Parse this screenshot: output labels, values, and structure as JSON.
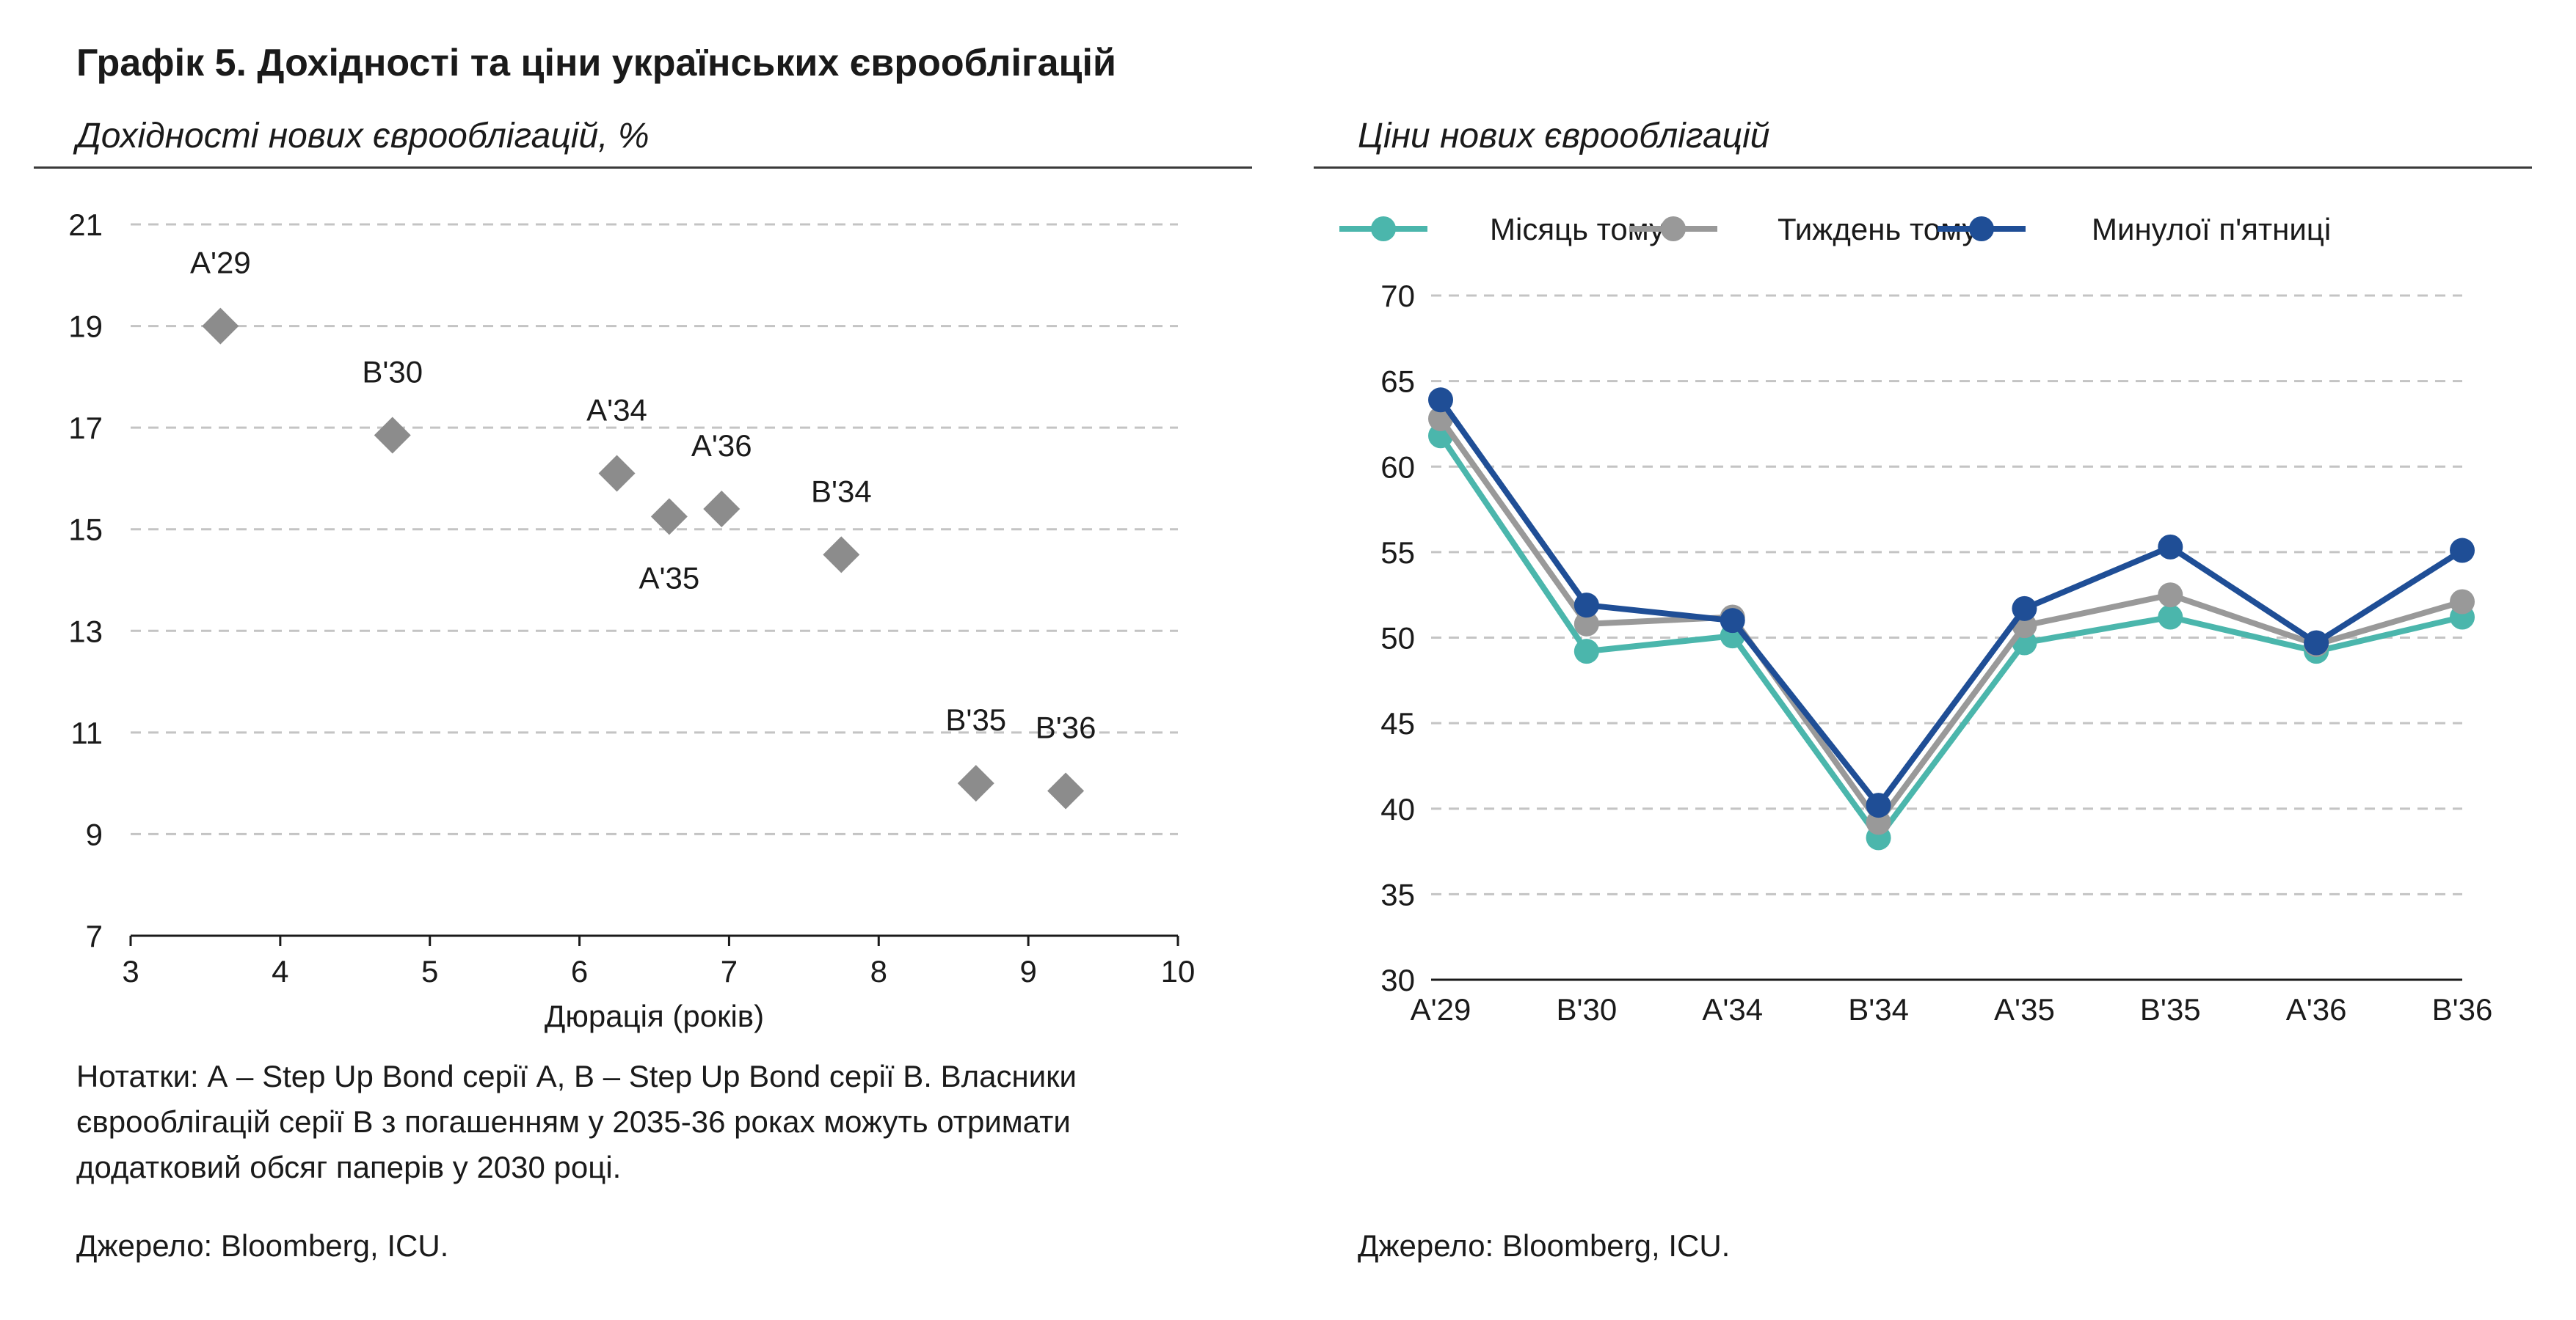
{
  "title": "Графік 5. Дохідності та ціни українських єврооблігацій",
  "left_panel": {
    "subtitle": "Дохідності нових єврооблігацій, %",
    "notes": [
      "Нотатки: А – Step Up Bond серії А, В – Step Up Bond серії В. Власники",
      "єврооблігацій серії В з погашенням у 2035-36 роках можуть отримати",
      "додатковий обсяг паперів у 2030 році."
    ],
    "source": "Джерело: Bloomberg, ICU."
  },
  "right_panel": {
    "subtitle": "Ціни нових єврооблігацій",
    "source": "Джерело: Bloomberg, ICU."
  },
  "colors": {
    "scatter_marker": "#8c8c8c",
    "month_ago": "#4bb6ac",
    "week_ago": "#999999",
    "last_friday": "#1f4e96",
    "grid": "#c4c4c4"
  },
  "chart_data": [
    {
      "type": "scatter",
      "title": "",
      "xlabel": "Дюрація (років)",
      "ylabel": "",
      "xlim": [
        3,
        10
      ],
      "ylim": [
        7,
        21
      ],
      "xticks": [
        3,
        4,
        5,
        6,
        7,
        8,
        9,
        10
      ],
      "yticks": [
        7,
        9,
        11,
        13,
        15,
        17,
        19,
        21
      ],
      "grid": "horizontal dashed",
      "points": [
        {
          "label": "A'29",
          "x": 3.6,
          "y": 19.0
        },
        {
          "label": "B'30",
          "x": 4.75,
          "y": 16.85
        },
        {
          "label": "A'34",
          "x": 6.25,
          "y": 16.1
        },
        {
          "label": "A'35",
          "x": 6.6,
          "y": 15.25
        },
        {
          "label": "A'36",
          "x": 6.95,
          "y": 15.4
        },
        {
          "label": "B'34",
          "x": 7.75,
          "y": 14.5
        },
        {
          "label": "B'35",
          "x": 8.65,
          "y": 10.0
        },
        {
          "label": "B'36",
          "x": 9.25,
          "y": 9.85
        }
      ]
    },
    {
      "type": "line",
      "title": "",
      "xlabel": "",
      "ylabel": "",
      "ylim": [
        30,
        70
      ],
      "yticks": [
        30,
        35,
        40,
        45,
        50,
        55,
        60,
        65,
        70
      ],
      "grid": "horizontal dashed",
      "legend": "top",
      "categories": [
        "A'29",
        "B'30",
        "A'34",
        "B'34",
        "A'35",
        "B'35",
        "A'36",
        "B'36"
      ],
      "series": [
        {
          "name": "Місяць тому",
          "color": "#4bb6ac",
          "values": [
            61.8,
            49.2,
            50.1,
            38.3,
            49.7,
            51.2,
            49.2,
            51.2
          ]
        },
        {
          "name": "Тиждень тому",
          "color": "#999999",
          "values": [
            62.8,
            50.8,
            51.2,
            39.2,
            50.7,
            52.5,
            49.6,
            52.1
          ]
        },
        {
          "name": "Минулої п'ятниці",
          "color": "#1f4e96",
          "values": [
            63.9,
            51.9,
            51.0,
            40.2,
            51.7,
            55.3,
            49.7,
            55.1
          ]
        }
      ]
    }
  ]
}
